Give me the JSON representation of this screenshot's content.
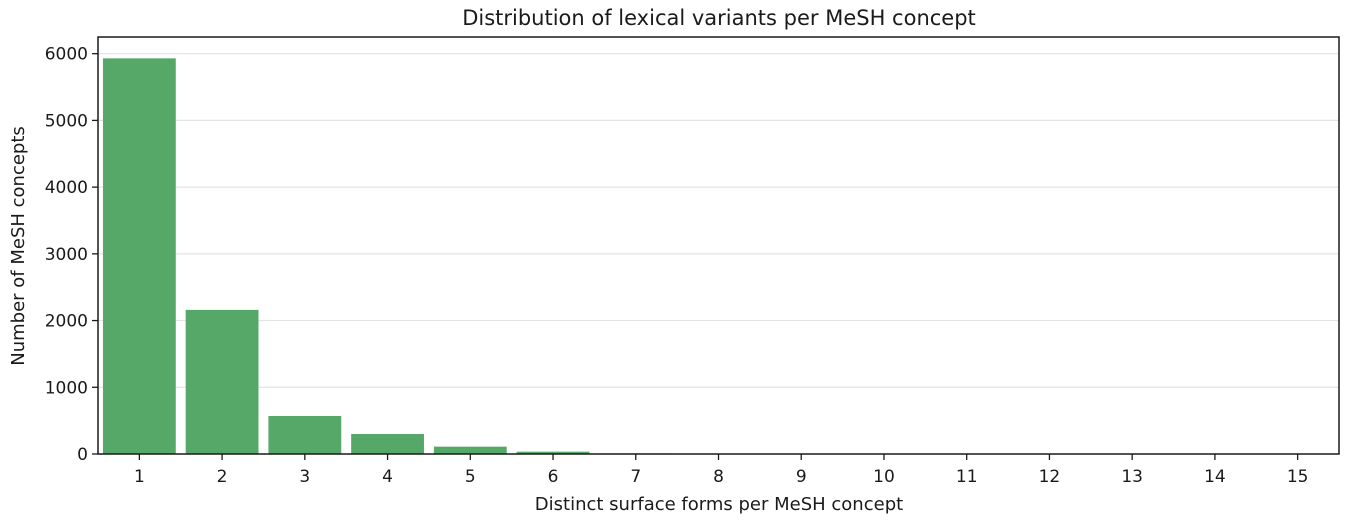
{
  "chart_data": {
    "type": "bar",
    "title": "Distribution of lexical variants per MeSH concept",
    "xlabel": "Distinct surface forms per MeSH concept",
    "ylabel": "Number of MeSH concepts",
    "categories": [
      "1",
      "2",
      "3",
      "4",
      "5",
      "6",
      "7",
      "8",
      "9",
      "10",
      "11",
      "12",
      "13",
      "14",
      "15"
    ],
    "values": [
      5930,
      2160,
      570,
      300,
      110,
      35,
      8,
      4,
      3,
      2,
      1,
      1,
      1,
      1,
      1
    ],
    "yticks": [
      0,
      1000,
      2000,
      3000,
      4000,
      5000,
      6000
    ],
    "ylim": [
      0,
      6250
    ],
    "grid": "horizontal",
    "bar_color": "#55a868",
    "grid_color": "#e3e3e3",
    "axis_color": "#1a1a1a"
  }
}
